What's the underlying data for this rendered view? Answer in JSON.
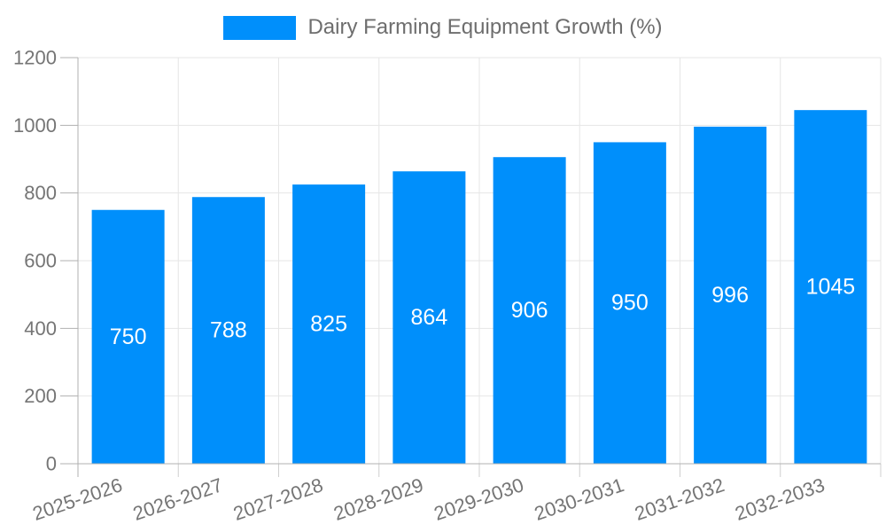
{
  "chart_data": {
    "type": "bar",
    "title": "Dairy Farming Equipment Growth (%)",
    "legend": {
      "label": "Dairy Farming Equipment Growth (%)",
      "position": "top-center",
      "marker": "rectangle"
    },
    "categories": [
      "2025-2026",
      "2026-2027",
      "2027-2028",
      "2028-2029",
      "2029-2030",
      "2030-2031",
      "2031-2032",
      "2032-2033"
    ],
    "series": [
      {
        "name": "Dairy Farming Equipment Growth (%)",
        "values": [
          750,
          788,
          825,
          864,
          906,
          950,
          996,
          1045
        ]
      }
    ],
    "bar_labels": [
      "750",
      "788",
      "825",
      "864",
      "906",
      "950",
      "996",
      "1045"
    ],
    "xlabel": "",
    "ylabel": "",
    "ylim": [
      0,
      1200
    ],
    "yticks": [
      0,
      200,
      400,
      600,
      800,
      1000,
      1200
    ],
    "ytick_labels": [
      "0",
      "200",
      "400",
      "600",
      "800",
      "1000",
      "1200"
    ],
    "grid": true,
    "x_label_rotation_deg": -19,
    "colors": {
      "bar": "#008FFB",
      "bar_label_text": "#FFFFFF",
      "axis_line": "#B0B0B0",
      "gridline": "#E6E6E6",
      "minor_tick": "#CFCFCF",
      "axis_tick_label": "#757575",
      "legend_text": "#6E6E6E",
      "background": "#FFFFFF"
    }
  }
}
